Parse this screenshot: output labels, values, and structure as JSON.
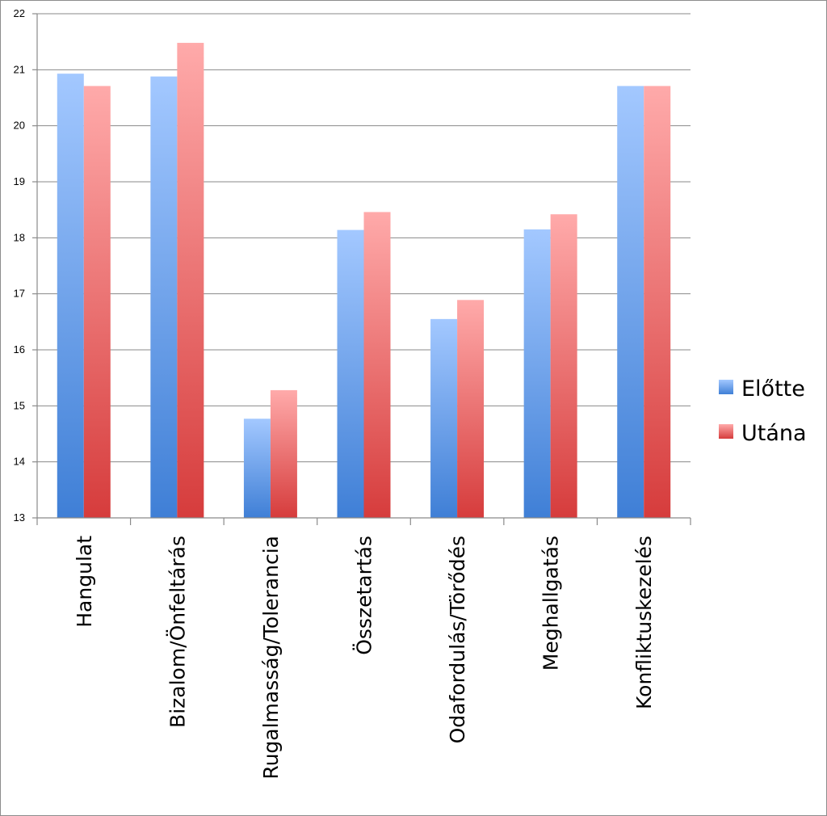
{
  "chart_data": {
    "type": "bar",
    "categories": [
      "Hangulat",
      "Bizalom/Önfeltárás",
      "Rugalmasság/Tolerancia",
      "Összetartás",
      "Odafordulás/Törődés",
      "Meghallgatás",
      "Konfliktuskezelés"
    ],
    "series": [
      {
        "name": "Előtte",
        "values": [
          20.93,
          20.88,
          14.77,
          18.14,
          16.55,
          18.15,
          20.71
        ],
        "color": "#4a86d8"
      },
      {
        "name": "Utána",
        "values": [
          20.71,
          21.48,
          15.28,
          18.46,
          16.89,
          18.42,
          20.71
        ],
        "color": "#d84a4a"
      }
    ],
    "ylim": [
      13,
      22
    ],
    "yticks": [
      "13",
      "14",
      "15",
      "16",
      "17",
      "18",
      "19",
      "20",
      "21",
      "22"
    ],
    "grid": true,
    "legend_position": "right"
  }
}
